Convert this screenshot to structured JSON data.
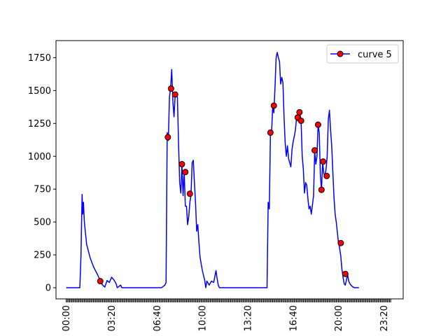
{
  "chart_data": {
    "type": "line",
    "title": "",
    "xlabel": "",
    "ylabel": "",
    "x_unit": "time of day (HH:MM)",
    "xlim": [
      "-00:45",
      "24:45"
    ],
    "ylim": [
      -85,
      1880
    ],
    "x_ticks": [
      "00:00",
      "03:20",
      "06:40",
      "10:00",
      "13:20",
      "16:40",
      "20:00",
      "23:20"
    ],
    "y_ticks": [
      0,
      250,
      500,
      750,
      1000,
      1250,
      1500,
      1750
    ],
    "grid": false,
    "legend": {
      "position": "top-right",
      "entries": [
        "curve 5"
      ]
    },
    "line_color": "#0000ff",
    "marker_face_color": "#ff0000",
    "marker_edge_color": "#000000",
    "series": [
      {
        "name": "curve 5",
        "line": [
          [
            "00:00",
            0
          ],
          [
            "00:30",
            0
          ],
          [
            "01:00",
            0
          ],
          [
            "01:05",
            240
          ],
          [
            "01:10",
            710
          ],
          [
            "01:13",
            560
          ],
          [
            "01:16",
            650
          ],
          [
            "01:20",
            500
          ],
          [
            "01:30",
            330
          ],
          [
            "01:45",
            230
          ],
          [
            "02:00",
            160
          ],
          [
            "02:15",
            110
          ],
          [
            "02:30",
            55
          ],
          [
            "02:40",
            20
          ],
          [
            "02:50",
            5
          ],
          [
            "03:00",
            55
          ],
          [
            "03:10",
            40
          ],
          [
            "03:20",
            80
          ],
          [
            "03:30",
            60
          ],
          [
            "03:40",
            30
          ],
          [
            "03:45",
            0
          ],
          [
            "04:00",
            20
          ],
          [
            "04:05",
            0
          ],
          [
            "05:00",
            0
          ],
          [
            "06:00",
            0
          ],
          [
            "07:00",
            0
          ],
          [
            "07:15",
            20
          ],
          [
            "07:20",
            40
          ],
          [
            "07:25",
            1180
          ],
          [
            "07:30",
            1120
          ],
          [
            "07:35",
            1450
          ],
          [
            "07:40",
            1520
          ],
          [
            "07:45",
            1660
          ],
          [
            "07:50",
            1420
          ],
          [
            "07:55",
            1300
          ],
          [
            "08:00",
            1460
          ],
          [
            "08:10",
            1450
          ],
          [
            "08:15",
            1100
          ],
          [
            "08:20",
            800
          ],
          [
            "08:25",
            720
          ],
          [
            "08:30",
            940
          ],
          [
            "08:35",
            700
          ],
          [
            "08:40",
            880
          ],
          [
            "08:45",
            620
          ],
          [
            "08:50",
            620
          ],
          [
            "08:55",
            480
          ],
          [
            "09:00",
            540
          ],
          [
            "09:05",
            650
          ],
          [
            "09:10",
            710
          ],
          [
            "09:15",
            950
          ],
          [
            "09:20",
            970
          ],
          [
            "09:25",
            800
          ],
          [
            "09:30",
            640
          ],
          [
            "09:35",
            430
          ],
          [
            "09:40",
            480
          ],
          [
            "09:45",
            340
          ],
          [
            "09:50",
            230
          ],
          [
            "10:00",
            130
          ],
          [
            "10:10",
            60
          ],
          [
            "10:15",
            0
          ],
          [
            "10:20",
            50
          ],
          [
            "10:30",
            20
          ],
          [
            "10:40",
            50
          ],
          [
            "10:50",
            40
          ],
          [
            "11:00",
            130
          ],
          [
            "11:05",
            70
          ],
          [
            "11:10",
            20
          ],
          [
            "11:15",
            0
          ],
          [
            "12:00",
            0
          ],
          [
            "13:00",
            0
          ],
          [
            "14:00",
            0
          ],
          [
            "14:45",
            0
          ],
          [
            "14:50",
            650
          ],
          [
            "14:55",
            600
          ],
          [
            "15:00",
            1170
          ],
          [
            "15:05",
            1180
          ],
          [
            "15:10",
            1380
          ],
          [
            "15:15",
            1330
          ],
          [
            "15:20",
            1520
          ],
          [
            "15:25",
            1750
          ],
          [
            "15:30",
            1790
          ],
          [
            "15:35",
            1750
          ],
          [
            "15:40",
            1720
          ],
          [
            "15:45",
            1550
          ],
          [
            "15:50",
            1600
          ],
          [
            "15:55",
            1560
          ],
          [
            "16:00",
            1300
          ],
          [
            "16:05",
            1100
          ],
          [
            "16:10",
            1000
          ],
          [
            "16:15",
            1080
          ],
          [
            "16:20",
            980
          ],
          [
            "16:25",
            950
          ],
          [
            "16:30",
            920
          ],
          [
            "16:35",
            1050
          ],
          [
            "16:40",
            1110
          ],
          [
            "16:45",
            1150
          ],
          [
            "16:50",
            1200
          ],
          [
            "16:55",
            1290
          ],
          [
            "17:00",
            1270
          ],
          [
            "17:05",
            1330
          ],
          [
            "17:10",
            1320
          ],
          [
            "17:15",
            1270
          ],
          [
            "17:20",
            1000
          ],
          [
            "17:25",
            900
          ],
          [
            "17:30",
            720
          ],
          [
            "17:35",
            800
          ],
          [
            "17:40",
            780
          ],
          [
            "17:45",
            680
          ],
          [
            "17:50",
            600
          ],
          [
            "17:55",
            620
          ],
          [
            "18:00",
            560
          ],
          [
            "18:10",
            700
          ],
          [
            "18:15",
            1040
          ],
          [
            "18:20",
            940
          ],
          [
            "18:25",
            1000
          ],
          [
            "18:30",
            1240
          ],
          [
            "18:35",
            1180
          ],
          [
            "18:40",
            860
          ],
          [
            "18:45",
            740
          ],
          [
            "18:50",
            960
          ],
          [
            "18:55",
            870
          ],
          [
            "19:00",
            850
          ],
          [
            "19:05",
            900
          ],
          [
            "19:10",
            1000
          ],
          [
            "19:15",
            1280
          ],
          [
            "19:20",
            1350
          ],
          [
            "19:25",
            1200
          ],
          [
            "19:30",
            1080
          ],
          [
            "19:35",
            880
          ],
          [
            "19:40",
            690
          ],
          [
            "19:45",
            560
          ],
          [
            "19:50",
            500
          ],
          [
            "19:55",
            420
          ],
          [
            "20:00",
            340
          ],
          [
            "20:05",
            300
          ],
          [
            "20:10",
            240
          ],
          [
            "20:15",
            140
          ],
          [
            "20:20",
            80
          ],
          [
            "20:25",
            30
          ],
          [
            "20:30",
            20
          ],
          [
            "20:35",
            60
          ],
          [
            "20:40",
            100
          ],
          [
            "20:45",
            50
          ],
          [
            "20:50",
            30
          ],
          [
            "21:00",
            10
          ],
          [
            "21:10",
            0
          ],
          [
            "21:20",
            0
          ],
          [
            "21:30",
            0
          ]
        ],
        "markers": [
          [
            "02:30",
            50
          ],
          [
            "07:28",
            1145
          ],
          [
            "07:42",
            1515
          ],
          [
            "08:00",
            1470
          ],
          [
            "08:30",
            940
          ],
          [
            "08:45",
            880
          ],
          [
            "09:05",
            715
          ],
          [
            "15:00",
            1180
          ],
          [
            "15:15",
            1385
          ],
          [
            "17:00",
            1295
          ],
          [
            "17:08",
            1335
          ],
          [
            "17:15",
            1270
          ],
          [
            "18:15",
            1045
          ],
          [
            "18:30",
            1240
          ],
          [
            "18:45",
            745
          ],
          [
            "18:52",
            960
          ],
          [
            "19:08",
            850
          ],
          [
            "20:10",
            340
          ],
          [
            "20:30",
            105
          ]
        ]
      }
    ]
  }
}
